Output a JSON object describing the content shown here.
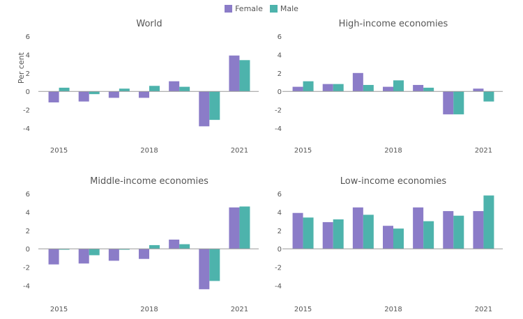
{
  "legend": {
    "female_label": "Female",
    "male_label": "Male"
  },
  "colors": {
    "female": "#8b7cc8",
    "male": "#4db3ac",
    "zero_line": "#999999"
  },
  "y_axis_label": "Per cent",
  "chart_data": [
    {
      "type": "bar",
      "title": "World",
      "categories": [
        "2015",
        "2016",
        "2017",
        "2018",
        "2019",
        "2020",
        "2021"
      ],
      "tick_labels": [
        "2015",
        "2018",
        "2021"
      ],
      "series": [
        {
          "name": "Female",
          "values": [
            -1.2,
            -1.1,
            -0.7,
            -0.7,
            1.1,
            -3.8,
            3.9
          ]
        },
        {
          "name": "Male",
          "values": [
            0.4,
            -0.3,
            0.3,
            0.6,
            0.5,
            -3.1,
            3.4
          ]
        }
      ],
      "ylim": [
        -4,
        6
      ],
      "yticks": [
        -4,
        -2,
        0,
        2,
        4,
        6
      ],
      "ylabel": "Per cent"
    },
    {
      "type": "bar",
      "title": "High-income economies",
      "categories": [
        "2015",
        "2016",
        "2017",
        "2018",
        "2019",
        "2020",
        "2021"
      ],
      "tick_labels": [
        "2015",
        "2018",
        "2021"
      ],
      "series": [
        {
          "name": "Female",
          "values": [
            0.5,
            0.8,
            2.0,
            0.5,
            0.7,
            -2.5,
            0.3
          ]
        },
        {
          "name": "Male",
          "values": [
            1.1,
            0.8,
            0.7,
            1.2,
            0.4,
            -2.5,
            -1.1
          ]
        }
      ],
      "ylim": [
        -4,
        6
      ],
      "yticks": [
        -4,
        -2,
        0,
        2,
        4,
        6
      ],
      "ylabel": ""
    },
    {
      "type": "bar",
      "title": "Middle-income economies",
      "categories": [
        "2015",
        "2016",
        "2017",
        "2018",
        "2019",
        "2020",
        "2021"
      ],
      "tick_labels": [
        "2015",
        "2018",
        "2021"
      ],
      "series": [
        {
          "name": "Female",
          "values": [
            -1.7,
            -1.6,
            -1.3,
            -1.1,
            1.0,
            -4.4,
            4.5
          ]
        },
        {
          "name": "Male",
          "values": [
            -0.1,
            -0.7,
            -0.1,
            0.4,
            0.5,
            -3.5,
            4.6
          ]
        }
      ],
      "ylim": [
        -4,
        6
      ],
      "yticks": [
        -4,
        -2,
        0,
        2,
        4,
        6
      ],
      "ylabel": ""
    },
    {
      "type": "bar",
      "title": "Low-income economies",
      "categories": [
        "2015",
        "2016",
        "2017",
        "2018",
        "2019",
        "2020",
        "2021"
      ],
      "tick_labels": [
        "2015",
        "2018",
        "2021"
      ],
      "series": [
        {
          "name": "Female",
          "values": [
            3.9,
            2.9,
            4.5,
            2.5,
            4.5,
            4.1,
            4.1
          ]
        },
        {
          "name": "Male",
          "values": [
            3.4,
            3.2,
            3.7,
            2.2,
            3.0,
            3.6,
            5.8
          ]
        }
      ],
      "ylim": [
        -4,
        6
      ],
      "yticks": [
        -4,
        -2,
        0,
        2,
        4,
        6
      ],
      "ylabel": ""
    }
  ]
}
